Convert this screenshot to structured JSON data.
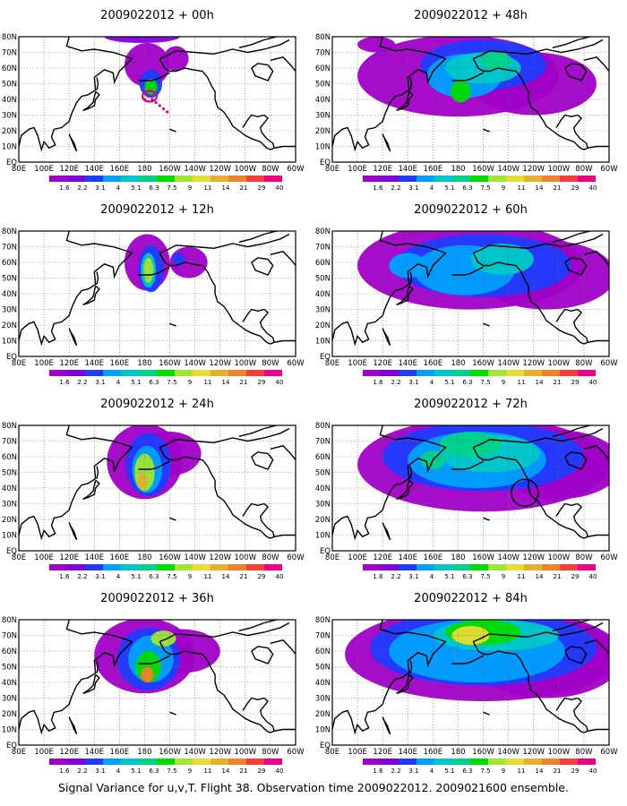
{
  "caption": "Signal Variance for u,v,T. Flight 38. Observation time 2009022012. 2009021600 ensemble.",
  "colorbar": {
    "levels": [
      "1.6",
      "2.2",
      "3.1",
      "4",
      "5.1",
      "6.3",
      "7.5",
      "9",
      "11",
      "14",
      "21",
      "29",
      "40"
    ],
    "colors": [
      "#a000c8",
      "#8200dc",
      "#1e3cff",
      "#00a0ff",
      "#00c8c8",
      "#00d28c",
      "#00dc00",
      "#a0e632",
      "#e6dc32",
      "#e6af2d",
      "#f08228",
      "#fa3c3c",
      "#f00082"
    ]
  },
  "map": {
    "lat_labels": [
      "80N",
      "70N",
      "60N",
      "50N",
      "40N",
      "30N",
      "20N",
      "10N",
      "EQ"
    ],
    "lon_labels": [
      "80E",
      "100E",
      "120E",
      "140E",
      "160E",
      "180",
      "160W",
      "140W",
      "120W",
      "100W",
      "80W",
      "60W"
    ]
  },
  "panels": [
    {
      "title": "2009022012 + 00h"
    },
    {
      "title": "2009022012 + 48h"
    },
    {
      "title": "2009022012 + 12h"
    },
    {
      "title": "2009022012 + 60h"
    },
    {
      "title": "2009022012 + 24h"
    },
    {
      "title": "2009022012 + 72h"
    },
    {
      "title": "2009022012 + 36h"
    },
    {
      "title": "2009022012 + 84h"
    }
  ]
}
